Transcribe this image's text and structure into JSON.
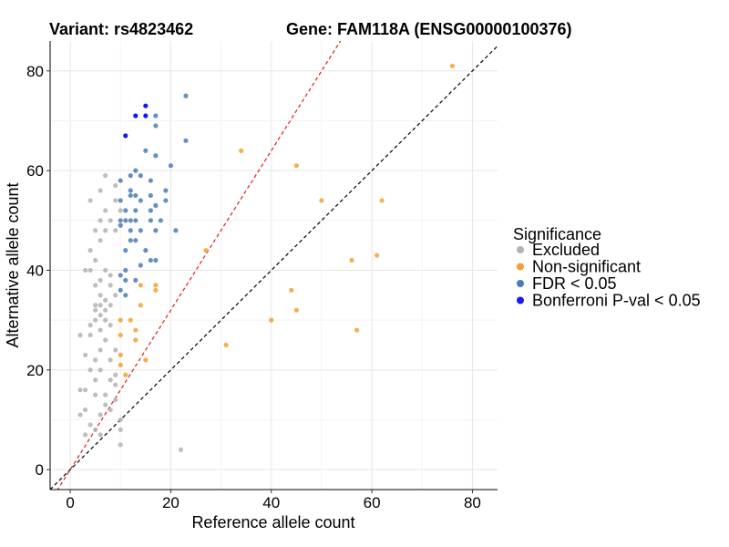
{
  "chart_data": {
    "type": "scatter",
    "title_left": "Variant: rs4823462",
    "title_right": "Gene: FAM118A (ENSG00000100376)",
    "xlabel": "Reference allele count",
    "ylabel": "Alternative allele count",
    "xlim": [
      -4,
      85
    ],
    "ylim": [
      -4,
      86
    ],
    "xticks": [
      0,
      20,
      40,
      60,
      80
    ],
    "yticks": [
      0,
      20,
      40,
      60,
      80
    ],
    "grid": true,
    "legend": {
      "title": "Significance",
      "position": "right",
      "entries": [
        {
          "key": "excluded",
          "label": "Excluded",
          "color": "#b3b3b3"
        },
        {
          "key": "nonsig",
          "label": "Non-significant",
          "color": "#f5a030"
        },
        {
          "key": "fdr",
          "label": "FDR < 0.05",
          "color": "#4a7db5"
        },
        {
          "key": "bonf",
          "label": "Bonferroni P-val < 0.05",
          "color": "#1a1aee"
        }
      ]
    },
    "reference_lines": [
      {
        "name": "identity",
        "slope": 1,
        "intercept": 0,
        "color": "#000000",
        "dashed": true
      },
      {
        "name": "expected-ratio",
        "slope": 1.6,
        "intercept": 0,
        "color": "#e41a1c",
        "dashed": true
      }
    ],
    "series": [
      {
        "name": "Excluded",
        "key": "excluded",
        "points": [
          [
            7,
            59
          ],
          [
            9,
            57
          ],
          [
            6,
            56
          ],
          [
            4,
            54
          ],
          [
            9,
            54
          ],
          [
            7,
            52
          ],
          [
            10,
            52
          ],
          [
            8,
            50
          ],
          [
            6,
            50
          ],
          [
            7,
            48
          ],
          [
            5,
            48
          ],
          [
            9,
            48
          ],
          [
            6,
            46
          ],
          [
            4,
            44
          ],
          [
            5,
            42
          ],
          [
            3,
            40
          ],
          [
            4,
            40
          ],
          [
            7,
            40
          ],
          [
            8,
            39
          ],
          [
            6,
            38
          ],
          [
            5,
            37
          ],
          [
            8,
            37
          ],
          [
            6,
            35
          ],
          [
            9,
            35
          ],
          [
            7,
            34
          ],
          [
            5,
            33
          ],
          [
            6,
            33
          ],
          [
            8,
            33
          ],
          [
            5,
            32
          ],
          [
            6,
            31
          ],
          [
            7,
            32
          ],
          [
            5,
            30
          ],
          [
            7,
            30
          ],
          [
            8,
            29
          ],
          [
            4,
            29
          ],
          [
            6,
            28
          ],
          [
            2,
            27
          ],
          [
            4,
            27
          ],
          [
            7,
            26
          ],
          [
            6,
            24
          ],
          [
            9,
            24
          ],
          [
            3,
            23
          ],
          [
            5,
            22
          ],
          [
            8,
            22
          ],
          [
            4,
            20
          ],
          [
            6,
            20
          ],
          [
            9,
            19
          ],
          [
            5,
            18
          ],
          [
            8,
            18
          ],
          [
            9,
            17
          ],
          [
            2,
            16
          ],
          [
            3,
            16
          ],
          [
            5,
            15
          ],
          [
            7,
            15
          ],
          [
            9,
            14
          ],
          [
            7,
            13
          ],
          [
            3,
            12
          ],
          [
            8,
            12
          ],
          [
            2,
            11
          ],
          [
            6,
            11
          ],
          [
            4,
            9
          ],
          [
            10,
            10
          ],
          [
            5,
            8
          ],
          [
            10,
            8
          ],
          [
            3,
            7
          ],
          [
            6,
            7
          ],
          [
            10,
            5
          ],
          [
            22,
            4
          ]
        ]
      },
      {
        "name": "Non-significant",
        "key": "nonsig",
        "points": [
          [
            76,
            81
          ],
          [
            34,
            64
          ],
          [
            45,
            61
          ],
          [
            50,
            54
          ],
          [
            62,
            54
          ],
          [
            27,
            44
          ],
          [
            61,
            43
          ],
          [
            56,
            42
          ],
          [
            14,
            37
          ],
          [
            17,
            37
          ],
          [
            17,
            36
          ],
          [
            44,
            36
          ],
          [
            14,
            33
          ],
          [
            45,
            32
          ],
          [
            40,
            30
          ],
          [
            10,
            30
          ],
          [
            12,
            30
          ],
          [
            57,
            28
          ],
          [
            13,
            28
          ],
          [
            10,
            27
          ],
          [
            13,
            26
          ],
          [
            31,
            25
          ],
          [
            10,
            23
          ],
          [
            15,
            22
          ],
          [
            10,
            21
          ],
          [
            11,
            19
          ]
        ]
      },
      {
        "name": "FDR < 0.05",
        "key": "fdr",
        "points": [
          [
            23,
            75
          ],
          [
            17,
            71
          ],
          [
            17,
            69
          ],
          [
            23,
            66
          ],
          [
            15,
            64
          ],
          [
            17,
            63
          ],
          [
            20,
            61
          ],
          [
            13,
            60
          ],
          [
            14,
            59
          ],
          [
            12,
            59
          ],
          [
            10,
            58
          ],
          [
            16,
            58
          ],
          [
            19,
            56
          ],
          [
            12,
            56
          ],
          [
            12,
            55
          ],
          [
            13,
            55
          ],
          [
            16,
            55
          ],
          [
            19,
            54
          ],
          [
            10,
            54
          ],
          [
            14,
            54
          ],
          [
            17,
            53
          ],
          [
            16,
            52
          ],
          [
            11,
            52
          ],
          [
            13,
            52
          ],
          [
            10,
            50
          ],
          [
            11,
            50
          ],
          [
            12,
            50
          ],
          [
            13,
            50
          ],
          [
            16,
            50
          ],
          [
            18,
            50
          ],
          [
            10,
            49
          ],
          [
            12,
            48
          ],
          [
            14,
            48
          ],
          [
            17,
            48
          ],
          [
            21,
            48
          ],
          [
            12,
            46
          ],
          [
            13,
            46
          ],
          [
            11,
            44
          ],
          [
            15,
            44
          ],
          [
            16,
            42
          ],
          [
            17,
            42
          ],
          [
            14,
            41
          ],
          [
            11,
            40
          ],
          [
            10,
            39
          ],
          [
            11,
            38
          ],
          [
            13,
            38
          ],
          [
            10,
            36
          ],
          [
            11,
            35
          ]
        ]
      },
      {
        "name": "Bonferroni P-val < 0.05",
        "key": "bonf",
        "points": [
          [
            15,
            73
          ],
          [
            13,
            71
          ],
          [
            15,
            71
          ],
          [
            11,
            67
          ]
        ]
      }
    ]
  }
}
